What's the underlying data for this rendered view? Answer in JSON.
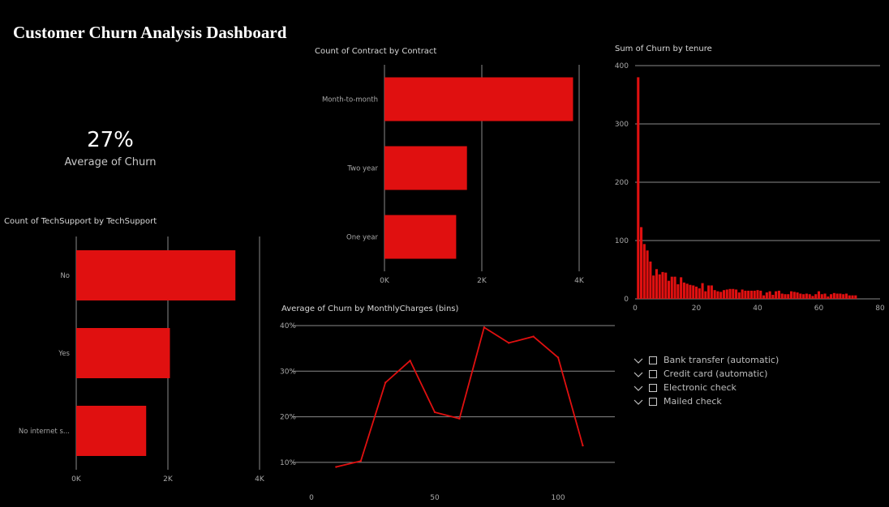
{
  "dashboard": {
    "title": "Customer Churn Analysis Dashboard",
    "accent_color": "#e01010"
  },
  "kpi": {
    "value": "27%",
    "label": "Average of Churn"
  },
  "slicer": {
    "items": [
      {
        "label": "Bank transfer (automatic)",
        "checked": false,
        "icon": "chevron-down-icon"
      },
      {
        "label": "Credit card (automatic)",
        "checked": false,
        "icon": "chevron-down-icon"
      },
      {
        "label": "Electronic check",
        "checked": false,
        "icon": "chevron-down-icon"
      },
      {
        "label": "Mailed check",
        "checked": false,
        "icon": "chevron-down-icon"
      }
    ]
  },
  "chart_data": [
    {
      "id": "contract",
      "type": "bar",
      "orientation": "horizontal",
      "title": "Count of Contract by Contract",
      "categories": [
        "Month-to-month",
        "Two year",
        "One year"
      ],
      "values": [
        3875,
        1695,
        1473
      ],
      "xlim": [
        0,
        4000
      ],
      "xticks": [
        "0K",
        "2K",
        "4K"
      ],
      "grid": true
    },
    {
      "id": "techsupport",
      "type": "bar",
      "orientation": "horizontal",
      "title": "Count of TechSupport by TechSupport",
      "categories": [
        "No",
        "Yes",
        "No internet s..."
      ],
      "values": [
        3473,
        2044,
        1526
      ],
      "xlim": [
        0,
        4000
      ],
      "xticks": [
        "0K",
        "2K",
        "4K"
      ],
      "grid": true
    },
    {
      "id": "tenure",
      "type": "bar",
      "title": "Sum of Churn by tenure",
      "x": [
        1,
        2,
        3,
        4,
        5,
        6,
        7,
        8,
        9,
        10,
        11,
        12,
        13,
        14,
        15,
        16,
        17,
        18,
        19,
        20,
        21,
        22,
        23,
        24,
        25,
        26,
        27,
        28,
        29,
        30,
        31,
        32,
        33,
        34,
        35,
        36,
        37,
        38,
        39,
        40,
        41,
        42,
        43,
        44,
        45,
        46,
        47,
        48,
        49,
        50,
        51,
        52,
        53,
        54,
        55,
        56,
        57,
        58,
        59,
        60,
        61,
        62,
        63,
        64,
        65,
        66,
        67,
        68,
        69,
        70,
        71,
        72
      ],
      "values": [
        380,
        123,
        94,
        83,
        64,
        40,
        51,
        42,
        46,
        45,
        31,
        38,
        38,
        25,
        37,
        28,
        26,
        24,
        23,
        21,
        18,
        27,
        13,
        23,
        23,
        15,
        13,
        12,
        15,
        16,
        17,
        17,
        16,
        11,
        16,
        14,
        14,
        14,
        14,
        15,
        14,
        6,
        11,
        13,
        7,
        13,
        14,
        9,
        8,
        8,
        13,
        12,
        11,
        9,
        8,
        9,
        8,
        5,
        8,
        13,
        8,
        9,
        4,
        8,
        10,
        9,
        9,
        8,
        9,
        6,
        6,
        6
      ],
      "xlim": [
        0,
        80
      ],
      "ylim": [
        0,
        400
      ],
      "xticks": [
        "0",
        "20",
        "40",
        "60",
        "80"
      ],
      "yticks": [
        "0",
        "100",
        "200",
        "300",
        "400"
      ],
      "grid": true
    },
    {
      "id": "monthly",
      "type": "line",
      "title": "Average of Churn by MonthlyCharges (bins)",
      "x": [
        10,
        20,
        30,
        40,
        50,
        60,
        70,
        80,
        90,
        100,
        110
      ],
      "values": [
        9,
        10.3,
        27.5,
        32.3,
        21,
        19.6,
        39.6,
        36.2,
        37.6,
        33,
        13.7
      ],
      "xlim": [
        0,
        123
      ],
      "ylim": [
        7.5,
        40
      ],
      "xticks": [
        "0",
        "50",
        "100"
      ],
      "yticks": [
        "10%",
        "20%",
        "30%",
        "40%"
      ],
      "grid": true
    }
  ]
}
